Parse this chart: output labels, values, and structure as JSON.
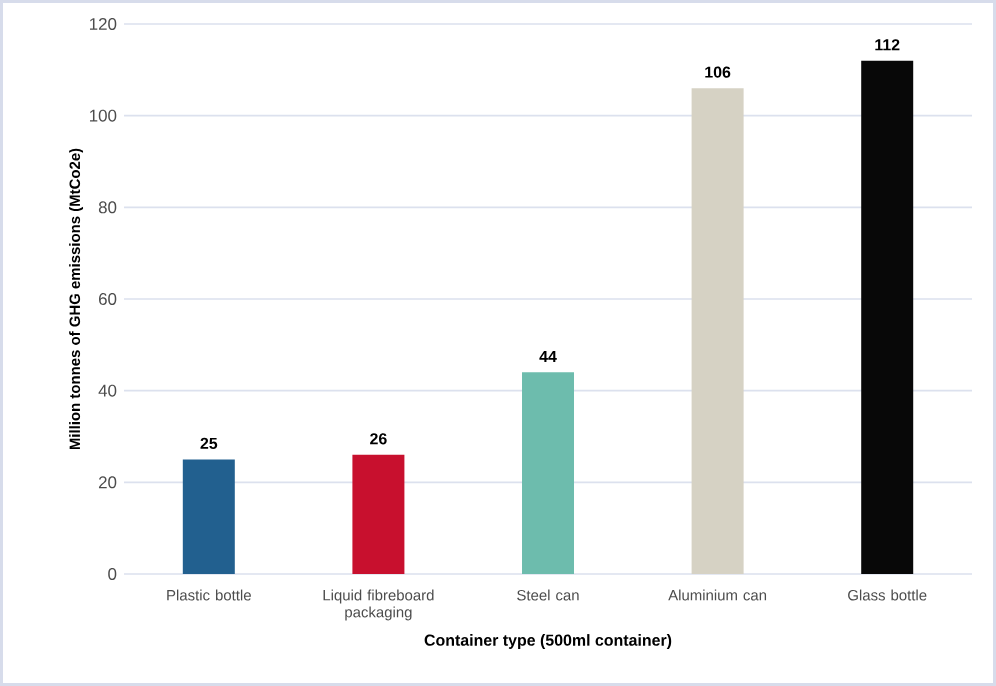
{
  "chart_data": {
    "type": "bar",
    "xlabel": "Container type (500ml container)",
    "ylabel": "Million tonnes of GHG emissions (MtCo2e)",
    "categories": [
      "Plastic bottle",
      "Liquid fibreboard packaging",
      "Steel can",
      "Aluminium can",
      "Glass bottle"
    ],
    "values": [
      25,
      26,
      44,
      106,
      112
    ],
    "colors": [
      "#22608f",
      "#c8102e",
      "#6dbcad",
      "#d6d2c4",
      "#080808"
    ],
    "ylim": [
      0,
      120
    ],
    "yticks": [
      0,
      20,
      40,
      60,
      80,
      100,
      120
    ],
    "grid": "y",
    "data_labels": true
  }
}
